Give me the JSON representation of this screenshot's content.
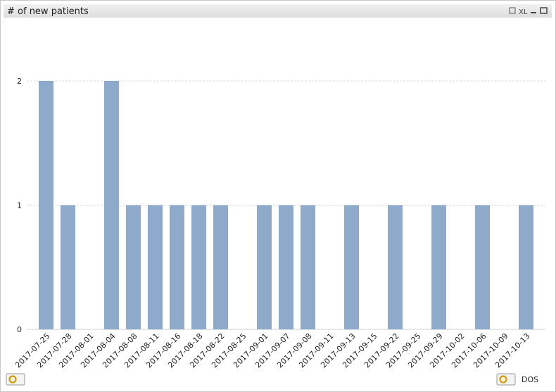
{
  "chart_data": {
    "type": "bar",
    "title": "# of new patients",
    "xlabel": "DOS",
    "categories": [
      "2017-07-25",
      "2017-07-28",
      "2017-08-01",
      "2017-08-04",
      "2017-08-08",
      "2017-08-11",
      "2017-08-16",
      "2017-08-18",
      "2017-08-22",
      "2017-08-25",
      "2017-09-01",
      "2017-09-07",
      "2017-09-08",
      "2017-09-11",
      "2017-09-13",
      "2017-09-15",
      "2017-09-22",
      "2017-09-25",
      "2017-09-29",
      "2017-10-02",
      "2017-10-06",
      "2017-10-09",
      "2017-10-13"
    ],
    "values": [
      2,
      1,
      0,
      2,
      1,
      1,
      1,
      1,
      1,
      0,
      1,
      1,
      1,
      0,
      1,
      0,
      1,
      0,
      1,
      0,
      1,
      0,
      1
    ],
    "color": "#8eaacb",
    "ylim": [
      0,
      2
    ],
    "yticks": [
      0,
      1,
      2
    ],
    "grid": true
  },
  "toolbar": {
    "xl": "XL"
  }
}
